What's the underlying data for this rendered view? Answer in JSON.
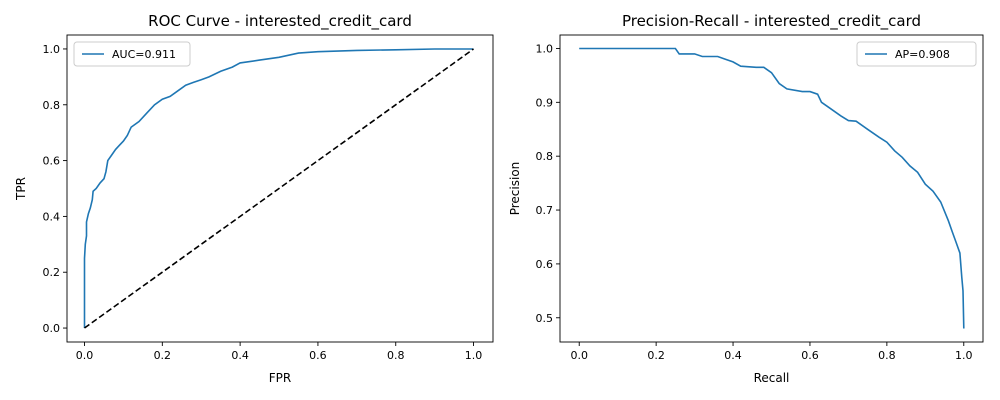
{
  "chart_data": [
    {
      "type": "line",
      "title": "ROC Curve - interested_credit_card",
      "xlabel": "FPR",
      "ylabel": "TPR",
      "xlim": [
        -0.045,
        1.05
      ],
      "ylim": [
        -0.05,
        1.05
      ],
      "xticks": [
        0.0,
        0.2,
        0.4,
        0.6,
        0.8,
        1.0
      ],
      "yticks": [
        0.0,
        0.2,
        0.4,
        0.6,
        0.8,
        1.0
      ],
      "xtick_labels": [
        "0.0",
        "0.2",
        "0.4",
        "0.6",
        "0.8",
        "1.0"
      ],
      "ytick_labels": [
        "0.0",
        "0.2",
        "0.4",
        "0.6",
        "0.8",
        "1.0"
      ],
      "grid": false,
      "legend": "top-left",
      "series": [
        {
          "name": "AUC=0.911",
          "style": "solid",
          "color": "#1f77b4",
          "points": [
            [
              0.0,
              0.0
            ],
            [
              0.0,
              0.25
            ],
            [
              0.002,
              0.3
            ],
            [
              0.005,
              0.33
            ],
            [
              0.005,
              0.38
            ],
            [
              0.01,
              0.41
            ],
            [
              0.015,
              0.43
            ],
            [
              0.02,
              0.46
            ],
            [
              0.022,
              0.49
            ],
            [
              0.03,
              0.5
            ],
            [
              0.04,
              0.52
            ],
            [
              0.05,
              0.535
            ],
            [
              0.055,
              0.56
            ],
            [
              0.06,
              0.6
            ],
            [
              0.07,
              0.62
            ],
            [
              0.08,
              0.64
            ],
            [
              0.09,
              0.655
            ],
            [
              0.1,
              0.67
            ],
            [
              0.11,
              0.69
            ],
            [
              0.12,
              0.72
            ],
            [
              0.14,
              0.74
            ],
            [
              0.16,
              0.77
            ],
            [
              0.18,
              0.8
            ],
            [
              0.2,
              0.82
            ],
            [
              0.22,
              0.83
            ],
            [
              0.24,
              0.85
            ],
            [
              0.26,
              0.87
            ],
            [
              0.28,
              0.88
            ],
            [
              0.3,
              0.89
            ],
            [
              0.32,
              0.9
            ],
            [
              0.35,
              0.92
            ],
            [
              0.38,
              0.935
            ],
            [
              0.4,
              0.95
            ],
            [
              0.45,
              0.96
            ],
            [
              0.5,
              0.97
            ],
            [
              0.55,
              0.985
            ],
            [
              0.6,
              0.99
            ],
            [
              0.7,
              0.995
            ],
            [
              0.8,
              0.997
            ],
            [
              0.9,
              1.0
            ],
            [
              1.0,
              1.0
            ]
          ]
        },
        {
          "name": "",
          "style": "dashed",
          "color": "#000000",
          "points": [
            [
              0.0,
              0.0
            ],
            [
              1.0,
              1.0
            ]
          ]
        }
      ]
    },
    {
      "type": "line",
      "title": "Precision-Recall - interested_credit_card",
      "xlabel": "Recall",
      "ylabel": "Precision",
      "xlim": [
        -0.05,
        1.05
      ],
      "ylim": [
        0.455,
        1.025
      ],
      "xticks": [
        0.0,
        0.2,
        0.4,
        0.6,
        0.8,
        1.0
      ],
      "yticks": [
        0.5,
        0.6,
        0.7,
        0.8,
        0.9,
        1.0
      ],
      "xtick_labels": [
        "0.0",
        "0.2",
        "0.4",
        "0.6",
        "0.8",
        "1.0"
      ],
      "ytick_labels": [
        "0.5",
        "0.6",
        "0.7",
        "0.8",
        "0.9",
        "1.0"
      ],
      "grid": false,
      "legend": "top-right",
      "series": [
        {
          "name": "AP=0.908",
          "style": "solid",
          "color": "#1f77b4",
          "points": [
            [
              0.0,
              1.0
            ],
            [
              0.25,
              1.0
            ],
            [
              0.26,
              0.99
            ],
            [
              0.3,
              0.99
            ],
            [
              0.32,
              0.985
            ],
            [
              0.36,
              0.985
            ],
            [
              0.38,
              0.98
            ],
            [
              0.4,
              0.975
            ],
            [
              0.42,
              0.967
            ],
            [
              0.46,
              0.965
            ],
            [
              0.48,
              0.965
            ],
            [
              0.5,
              0.955
            ],
            [
              0.52,
              0.935
            ],
            [
              0.54,
              0.925
            ],
            [
              0.58,
              0.92
            ],
            [
              0.6,
              0.92
            ],
            [
              0.62,
              0.915
            ],
            [
              0.63,
              0.9
            ],
            [
              0.65,
              0.89
            ],
            [
              0.68,
              0.875
            ],
            [
              0.7,
              0.866
            ],
            [
              0.72,
              0.865
            ],
            [
              0.75,
              0.85
            ],
            [
              0.78,
              0.835
            ],
            [
              0.8,
              0.826
            ],
            [
              0.82,
              0.81
            ],
            [
              0.84,
              0.798
            ],
            [
              0.86,
              0.782
            ],
            [
              0.88,
              0.77
            ],
            [
              0.9,
              0.748
            ],
            [
              0.92,
              0.735
            ],
            [
              0.94,
              0.715
            ],
            [
              0.96,
              0.68
            ],
            [
              0.97,
              0.66
            ],
            [
              0.98,
              0.64
            ],
            [
              0.99,
              0.62
            ],
            [
              0.995,
              0.575
            ],
            [
              0.998,
              0.55
            ],
            [
              1.0,
              0.48
            ]
          ]
        }
      ]
    }
  ]
}
